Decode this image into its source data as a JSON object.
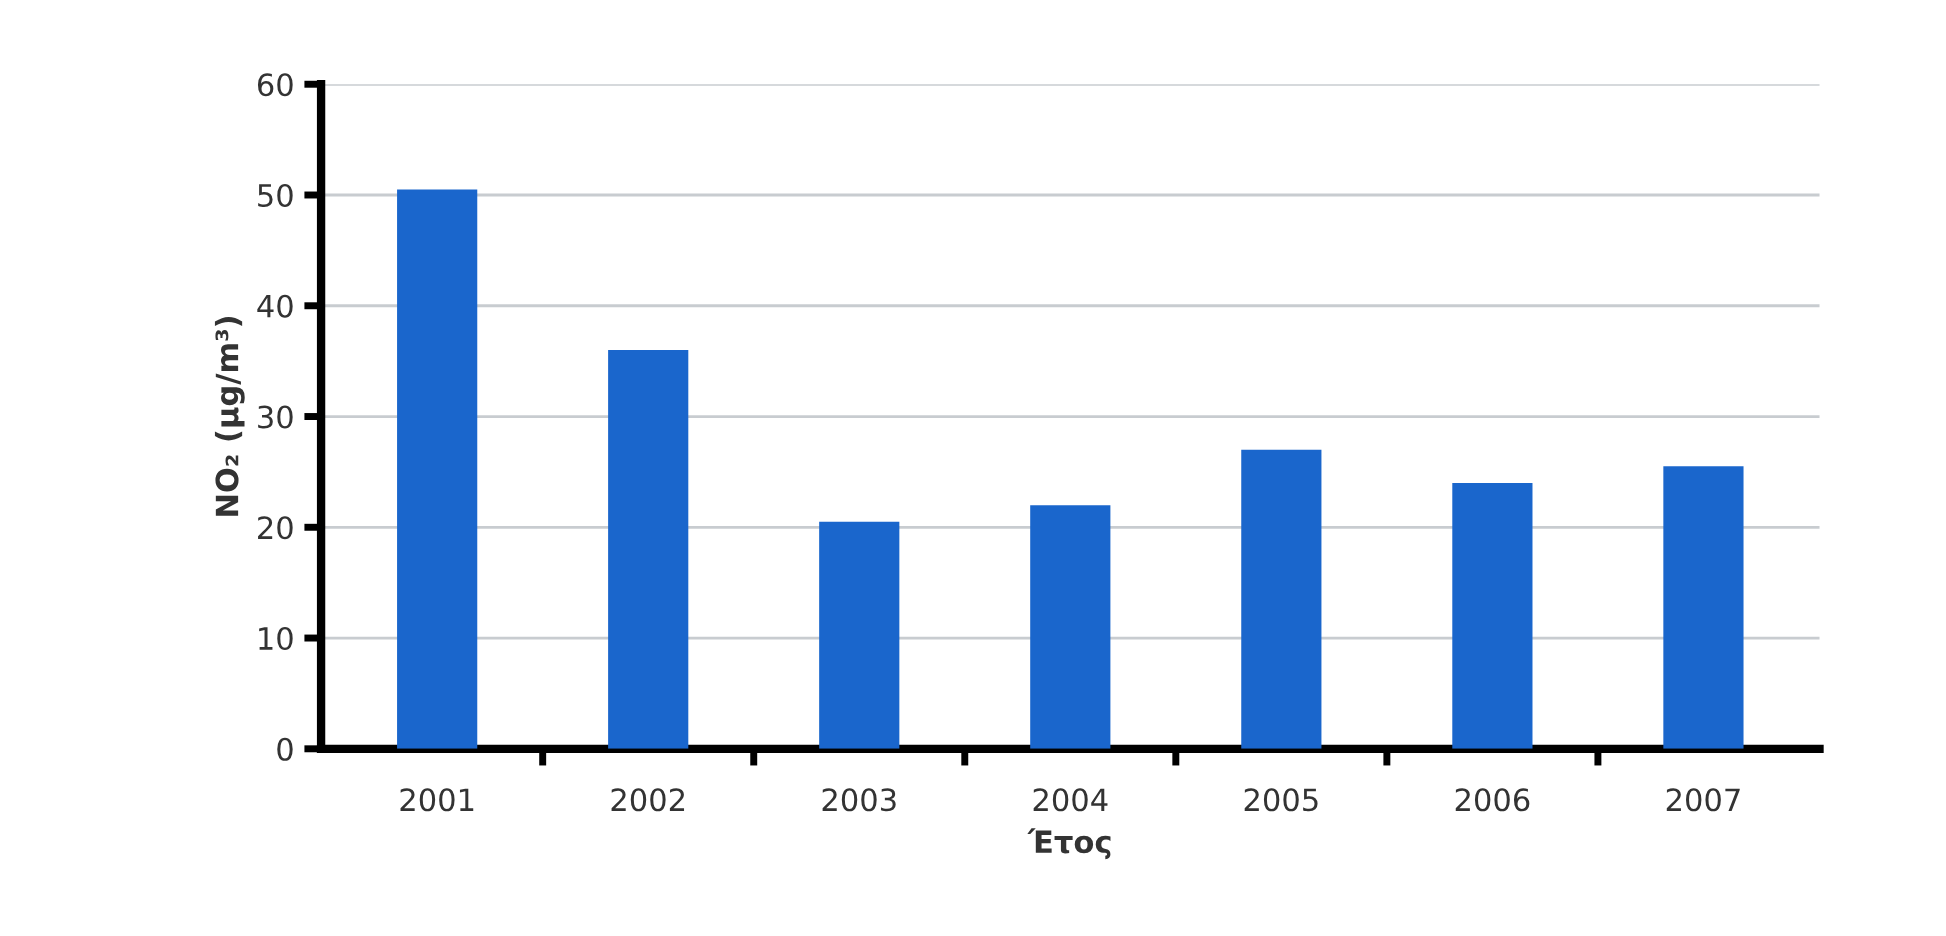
{
  "chart_data": {
    "type": "bar",
    "xlabel": "Έτος",
    "ylabel": "NO₂ (μg/m³)",
    "categories": [
      "2001",
      "2002",
      "2003",
      "2004",
      "2005",
      "2006",
      "2007"
    ],
    "values": [
      50.5,
      36,
      20.5,
      22,
      27,
      24,
      25.5
    ],
    "color": "#1a66cc",
    "ylim": [
      0,
      60
    ],
    "yticks": [
      0,
      10,
      20,
      30,
      40,
      50,
      60
    ],
    "grid": "y"
  }
}
